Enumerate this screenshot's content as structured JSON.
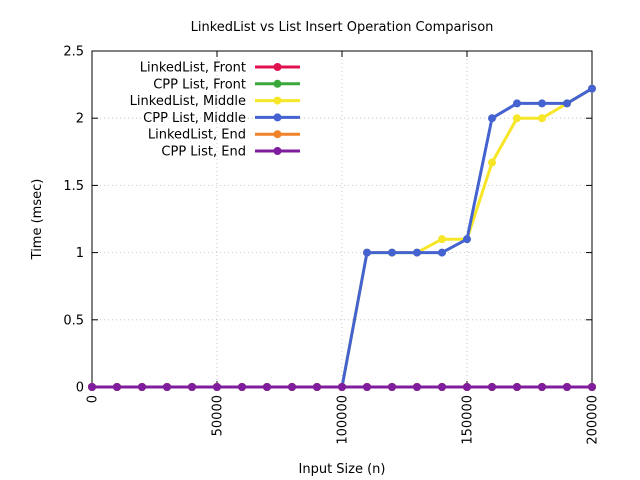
{
  "chart_data": {
    "type": "line",
    "title": "LinkedList vs List Insert Operation Comparison",
    "xlabel": "Input Size (n)",
    "ylabel": "Time (msec)",
    "xlim": [
      0,
      200000
    ],
    "ylim": [
      0,
      2.5
    ],
    "xticks": [
      0,
      50000,
      100000,
      150000,
      200000
    ],
    "yticks": [
      0,
      0.5,
      1,
      1.5,
      2,
      2.5
    ],
    "ytick_labels": [
      "0",
      "0.5",
      "1",
      "1.5",
      "2",
      "2.5"
    ],
    "grid": true,
    "legend_position": "top-left",
    "x": [
      0,
      10000,
      20000,
      30000,
      40000,
      50000,
      60000,
      70000,
      80000,
      90000,
      100000,
      110000,
      120000,
      130000,
      140000,
      150000,
      160000,
      170000,
      180000,
      190000,
      200000
    ],
    "series": [
      {
        "name": "LinkedList, Front",
        "color": "#e0114f",
        "values": [
          0,
          0,
          0,
          0,
          0,
          0,
          0,
          0,
          0,
          0,
          0,
          0,
          0,
          0,
          0,
          0,
          0,
          0,
          0,
          0,
          0
        ]
      },
      {
        "name": "CPP List, Front",
        "color": "#3ba83b",
        "values": [
          0,
          0,
          0,
          0,
          0,
          0,
          0,
          0,
          0,
          0,
          0,
          0,
          0,
          0,
          0,
          0,
          0,
          0,
          0,
          0,
          0
        ]
      },
      {
        "name": "LinkedList, Middle",
        "color": "#f7e628",
        "values": [
          0,
          0,
          0,
          0,
          0,
          0,
          0,
          0,
          0,
          0,
          0,
          1,
          1,
          1,
          1.1,
          1.1,
          1.67,
          2,
          2,
          2.11,
          2.22
        ]
      },
      {
        "name": "CPP List, Middle",
        "color": "#4463d0",
        "values": [
          0,
          0,
          0,
          0,
          0,
          0,
          0,
          0,
          0,
          0,
          0,
          1,
          1,
          1,
          1,
          1.1,
          2,
          2.11,
          2.11,
          2.11,
          2.22
        ]
      },
      {
        "name": "LinkedList, End",
        "color": "#f0822a",
        "values": [
          0,
          0,
          0,
          0,
          0,
          0,
          0,
          0,
          0,
          0,
          0,
          0,
          0,
          0,
          0,
          0,
          0,
          0,
          0,
          0,
          0
        ]
      },
      {
        "name": "CPP List, End",
        "color": "#7f1d9e",
        "values": [
          0,
          0,
          0,
          0,
          0,
          0,
          0,
          0,
          0,
          0,
          0,
          0,
          0,
          0,
          0,
          0,
          0,
          0,
          0,
          0,
          0
        ]
      }
    ]
  }
}
